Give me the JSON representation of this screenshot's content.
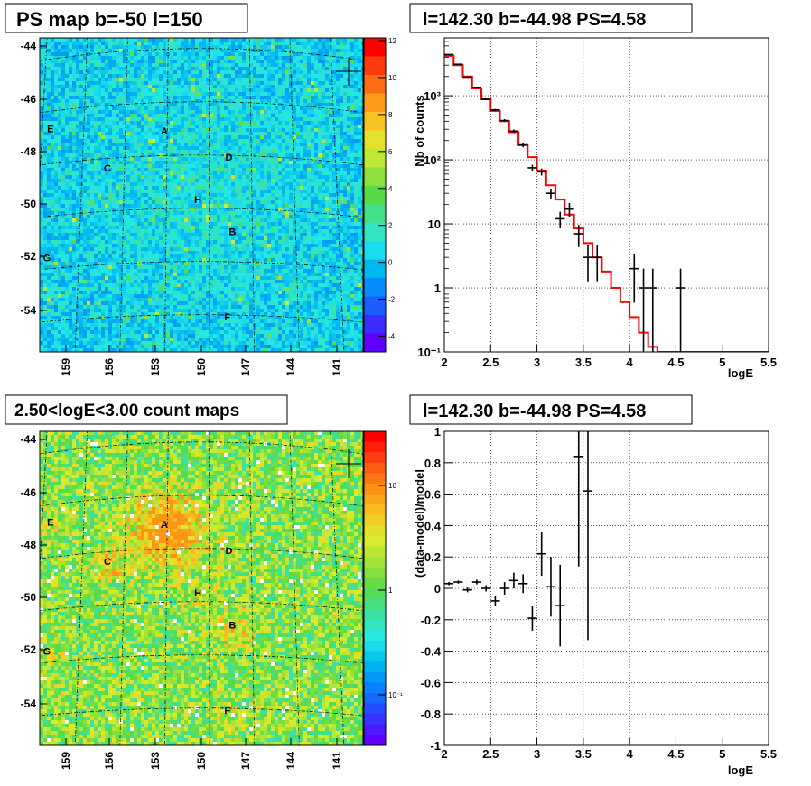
{
  "colors": {
    "background": "#ffffff",
    "map_top_base": "#35e8ef",
    "map_bottom_base": "#9be34a",
    "hist_line": "#ff0000",
    "data_marker": "#000000"
  },
  "palette_stops": [
    "#6000ff",
    "#2f3cff",
    "#0a7dff",
    "#00b8f0",
    "#24e8e8",
    "#3de0a0",
    "#56da45",
    "#a0e33a",
    "#dcec2c",
    "#f7c21f",
    "#ff8c18",
    "#ff4c14",
    "#ff0000"
  ],
  "panels": {
    "map_top": {
      "title": "PS map b=-50 l=150",
      "y_ticks": [
        "-44",
        "-46",
        "-48",
        "-50",
        "-52",
        "-54"
      ],
      "x_ticks": [
        "159",
        "156",
        "153",
        "150",
        "147",
        "144",
        "141"
      ],
      "colorbar_ticks": [
        "12",
        "10",
        "8",
        "6",
        "4",
        "2",
        "0",
        "-2",
        "-4"
      ],
      "colorbar_range": [
        -5,
        12
      ],
      "sources": [
        {
          "label": "A",
          "l": 153.2,
          "b": -47.2
        },
        {
          "label": "B",
          "l": 148.4,
          "b": -51.0
        },
        {
          "label": "C",
          "l": 157.2,
          "b": -48.5
        },
        {
          "label": "D",
          "l": 148.6,
          "b": -48.2
        },
        {
          "label": "E",
          "l": 161.4,
          "b": -46.8
        },
        {
          "label": "F",
          "l": 148.8,
          "b": -54.2
        },
        {
          "label": "G",
          "l": 161.2,
          "b": -51.7
        },
        {
          "label": "H",
          "l": 150.8,
          "b": -49.8
        }
      ]
    },
    "map_bottom": {
      "title": "2.50<logE<3.00 count maps",
      "y_ticks": [
        "-44",
        "-46",
        "-48",
        "-50",
        "-52",
        "-54"
      ],
      "x_ticks": [
        "159",
        "156",
        "153",
        "150",
        "147",
        "144",
        "141"
      ],
      "colorbar_ticks": [
        "10",
        "1",
        "10⁻¹"
      ],
      "log_scale": true,
      "sources": [
        {
          "label": "A",
          "l": 153.2,
          "b": -47.2
        },
        {
          "label": "B",
          "l": 148.4,
          "b": -51.0
        },
        {
          "label": "C",
          "l": 157.2,
          "b": -48.5
        },
        {
          "label": "D",
          "l": 148.6,
          "b": -48.2
        },
        {
          "label": "E",
          "l": 161.4,
          "b": -46.8
        },
        {
          "label": "F",
          "l": 148.8,
          "b": -54.2
        },
        {
          "label": "G",
          "l": 161.2,
          "b": -51.7
        },
        {
          "label": "H",
          "l": 150.8,
          "b": -49.8
        }
      ]
    },
    "spectrum": {
      "title": "l=142.30 b=-44.98 PS=4.58"
    },
    "residual": {
      "title": "l=142.30 b=-44.98 PS=4.58"
    }
  },
  "chart_data": [
    {
      "type": "line",
      "panel": "spectrum",
      "title": "l=142.30 b=-44.98 PS=4.58",
      "xlabel": "logE",
      "ylabel": "Nb of counts",
      "xlim": [
        2,
        5.5
      ],
      "ylim": [
        0.1,
        8000
      ],
      "log_y": true,
      "grid": true,
      "x_ticks": [
        "2",
        "2.5",
        "3",
        "3.5",
        "4",
        "4.5",
        "5",
        "5.5"
      ],
      "y_ticks": [
        {
          "v": 0.1,
          "label": "10⁻¹"
        },
        {
          "v": 1,
          "label": "1"
        },
        {
          "v": 10,
          "label": "10"
        },
        {
          "v": 100,
          "label": "10²"
        },
        {
          "v": 1000,
          "label": "10³"
        }
      ],
      "model_bin_edges": [
        2.0,
        2.1,
        2.2,
        2.3,
        2.4,
        2.5,
        2.6,
        2.7,
        2.8,
        2.9,
        3.0,
        3.1,
        3.2,
        3.3,
        3.4,
        3.5,
        3.6,
        3.7,
        3.8,
        3.9,
        4.0,
        4.1,
        4.2,
        4.3,
        4.4,
        4.5,
        4.6,
        4.7,
        4.8,
        4.9,
        5.0,
        5.1,
        5.2,
        5.3,
        5.4,
        5.5
      ],
      "model_values": [
        4200,
        3000,
        2000,
        1300,
        880,
        580,
        400,
        270,
        170,
        110,
        68,
        40,
        24,
        14,
        8.5,
        5,
        3,
        1.8,
        1,
        0.6,
        0.35,
        0.2,
        0.12,
        0.1,
        0.1,
        0.1,
        0.1,
        0.1,
        0.1,
        0.1,
        0.1,
        0.1,
        0.1,
        0.1,
        0.1
      ],
      "data_points": [
        {
          "x": 2.05,
          "y": 4400
        },
        {
          "x": 2.15,
          "y": 3100
        },
        {
          "x": 2.25,
          "y": 1950
        },
        {
          "x": 2.35,
          "y": 1350
        },
        {
          "x": 2.45,
          "y": 880
        },
        {
          "x": 2.55,
          "y": 600
        },
        {
          "x": 2.65,
          "y": 410
        },
        {
          "x": 2.75,
          "y": 280
        },
        {
          "x": 2.85,
          "y": 170
        },
        {
          "x": 2.95,
          "y": 75
        },
        {
          "x": 3.05,
          "y": 65
        },
        {
          "x": 3.15,
          "y": 30
        },
        {
          "x": 3.25,
          "y": 12
        },
        {
          "x": 3.35,
          "y": 17
        },
        {
          "x": 3.45,
          "y": 7
        },
        {
          "x": 3.55,
          "y": 3
        },
        {
          "x": 3.65,
          "y": 3
        },
        {
          "x": 4.05,
          "y": 2
        },
        {
          "x": 4.15,
          "y": 1
        },
        {
          "x": 4.25,
          "y": 1
        },
        {
          "x": 4.55,
          "y": 1
        }
      ]
    },
    {
      "type": "scatter",
      "panel": "residual",
      "title": "l=142.30 b=-44.98 PS=4.58",
      "xlabel": "logE",
      "ylabel": "(data-model)/model",
      "xlim": [
        2,
        5.5
      ],
      "ylim": [
        -1,
        1
      ],
      "grid": true,
      "x_ticks": [
        "2",
        "2.5",
        "3",
        "3.5",
        "4",
        "4.5",
        "5",
        "5.5"
      ],
      "y_ticks": [
        "-1",
        "-0.8",
        "-0.6",
        "-0.4",
        "-0.2",
        "0",
        "0.2",
        "0.4",
        "0.6",
        "0.8",
        "1"
      ],
      "points": [
        {
          "x": 2.05,
          "y": 0.03,
          "err": 0.01
        },
        {
          "x": 2.15,
          "y": 0.04,
          "err": 0.01
        },
        {
          "x": 2.25,
          "y": -0.01,
          "err": 0.015
        },
        {
          "x": 2.35,
          "y": 0.04,
          "err": 0.015
        },
        {
          "x": 2.45,
          "y": 0.0,
          "err": 0.02
        },
        {
          "x": 2.55,
          "y": -0.08,
          "err": 0.03
        },
        {
          "x": 2.65,
          "y": 0.0,
          "err": 0.04
        },
        {
          "x": 2.75,
          "y": 0.05,
          "err": 0.05
        },
        {
          "x": 2.85,
          "y": 0.03,
          "err": 0.06
        },
        {
          "x": 2.95,
          "y": -0.19,
          "err": 0.08
        },
        {
          "x": 3.05,
          "y": 0.22,
          "err": 0.14
        },
        {
          "x": 3.15,
          "y": 0.01,
          "err": 0.19
        },
        {
          "x": 3.25,
          "y": -0.11,
          "err": 0.26
        },
        {
          "x": 3.45,
          "y": 0.84,
          "err": 0.7
        },
        {
          "x": 3.55,
          "y": 0.62,
          "err": 0.95
        }
      ]
    }
  ]
}
